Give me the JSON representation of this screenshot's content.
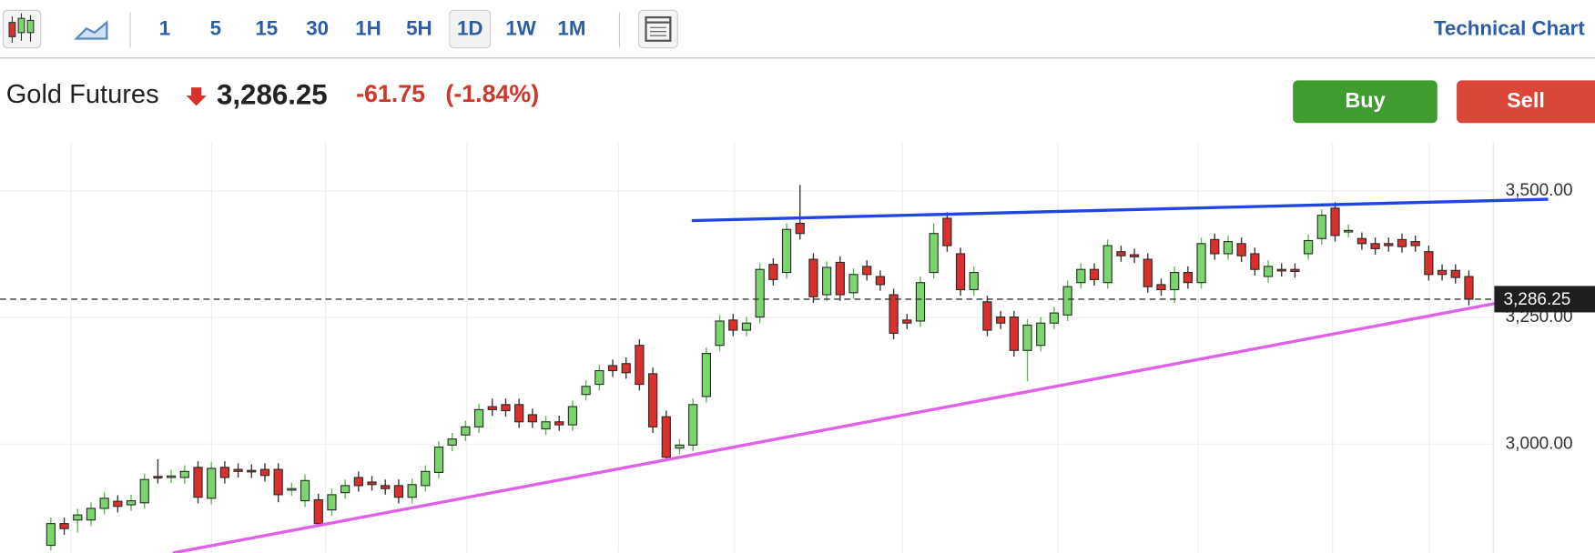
{
  "toolbar": {
    "intervals": [
      "1",
      "5",
      "15",
      "30",
      "1H",
      "5H",
      "1D",
      "1W",
      "1M"
    ],
    "selected": "1D",
    "title": "Technical Chart"
  },
  "header": {
    "instrument": "Gold Futures",
    "price": "3,286.25",
    "change": "-61.75",
    "change_percent": "(-1.84%)"
  },
  "buttons": {
    "buy": "Buy",
    "sell": "Sell"
  },
  "chart_data": {
    "type": "candlestick",
    "ylim": [
      2785,
      3596
    ],
    "yticks": [
      {
        "value": 3000,
        "label": "3,000.00"
      },
      {
        "value": 3250,
        "label": "3,250.00"
      },
      {
        "value": 3500,
        "label": "3,500.00"
      }
    ],
    "current_price": {
      "value": 3286.25,
      "label": "3,286.25"
    },
    "up_color": "#7ad66c",
    "down_color": "#d9302c",
    "grid": true,
    "open": [
      2800,
      2843,
      2850,
      2850,
      2873,
      2887,
      2880,
      2884,
      2936,
      2935,
      2934,
      2954,
      2893,
      2954,
      2950,
      2948,
      2950,
      2950,
      2910,
      2888,
      2890,
      2870,
      2904,
      2934,
      2925,
      2918,
      2918,
      2895,
      2918,
      2944,
      2998,
      3018,
      3034,
      3074,
      3078,
      3078,
      3058,
      3030,
      3044,
      3038,
      3098,
      3118,
      3155,
      3159,
      3195,
      3139,
      3054,
      2992,
      2998,
      3094,
      3195,
      3245,
      3225,
      3251,
      3355,
      3339,
      3436,
      3365,
      3295,
      3359,
      3299,
      3351,
      3331,
      3295,
      3245,
      3243,
      3339,
      3446,
      3376,
      3305,
      3281,
      3251,
      3251,
      3185,
      3195,
      3239,
      3255,
      3319,
      3345,
      3319,
      3380,
      3374,
      3365,
      3315,
      3305,
      3339,
      3319,
      3404,
      3376,
      3396,
      3376,
      3331,
      3345,
      3345,
      3376,
      3406,
      3466,
      3420,
      3406,
      3396,
      3396,
      3404,
      3400,
      3380,
      3343,
      3343,
      3331
    ],
    "high": [
      2855,
      2855,
      2872,
      2885,
      2905,
      2899,
      2900,
      2942,
      2970,
      2949,
      2958,
      2966,
      2964,
      2966,
      2962,
      2960,
      2962,
      2962,
      2924,
      2940,
      2902,
      2912,
      2930,
      2946,
      2937,
      2930,
      2930,
      2932,
      2958,
      3006,
      3022,
      3046,
      3080,
      3090,
      3090,
      3090,
      3070,
      3056,
      3056,
      3086,
      3126,
      3157,
      3167,
      3171,
      3207,
      3151,
      3066,
      3010,
      3090,
      3191,
      3255,
      3257,
      3251,
      3357,
      3367,
      3436,
      3512,
      3377,
      3361,
      3371,
      3347,
      3363,
      3343,
      3307,
      3257,
      3331,
      3436,
      3458,
      3388,
      3351,
      3293,
      3263,
      3263,
      3247,
      3251,
      3271,
      3323,
      3357,
      3357,
      3404,
      3392,
      3386,
      3377,
      3327,
      3351,
      3351,
      3408,
      3416,
      3412,
      3408,
      3388,
      3363,
      3357,
      3357,
      3414,
      3464,
      3478,
      3434,
      3418,
      3408,
      3408,
      3416,
      3412,
      3392,
      3355,
      3355,
      3343
    ],
    "low": [
      2790,
      2821,
      2825,
      2838,
      2861,
      2865,
      2868,
      2872,
      2922,
      2923,
      2922,
      2883,
      2881,
      2922,
      2934,
      2933,
      2926,
      2885,
      2898,
      2876,
      2836,
      2858,
      2892,
      2906,
      2908,
      2900,
      2883,
      2883,
      2906,
      2932,
      2986,
      3006,
      3022,
      3056,
      3054,
      3032,
      3032,
      3018,
      3026,
      3026,
      3086,
      3106,
      3133,
      3129,
      3106,
      3022,
      2966,
      2980,
      2986,
      3082,
      3183,
      3213,
      3213,
      3239,
      3313,
      3327,
      3404,
      3279,
      3283,
      3283,
      3287,
      3323,
      3303,
      3207,
      3227,
      3231,
      3327,
      3380,
      3293,
      3293,
      3213,
      3227,
      3173,
      3124,
      3183,
      3227,
      3243,
      3307,
      3313,
      3307,
      3360,
      3358,
      3299,
      3293,
      3279,
      3307,
      3307,
      3364,
      3364,
      3360,
      3333,
      3319,
      3331,
      3329,
      3364,
      3394,
      3400,
      3408,
      3384,
      3374,
      3380,
      3378,
      3380,
      3323,
      3323,
      3317,
      3274
    ],
    "close": [
      2843,
      2833,
      2860,
      2873,
      2893,
      2877,
      2888,
      2930,
      2934,
      2937,
      2946,
      2895,
      2952,
      2934,
      2946,
      2945,
      2938,
      2900,
      2912,
      2928,
      2843,
      2900,
      2918,
      2918,
      2920,
      2912,
      2895,
      2920,
      2946,
      2994,
      3010,
      3034,
      3068,
      3068,
      3066,
      3044,
      3044,
      3044,
      3038,
      3074,
      3114,
      3145,
      3145,
      3141,
      3118,
      3034,
      2974,
      2998,
      3078,
      3179,
      3243,
      3225,
      3239,
      3345,
      3325,
      3424,
      3416,
      3291,
      3349,
      3295,
      3335,
      3335,
      3315,
      3219,
      3239,
      3319,
      3416,
      3392,
      3305,
      3339,
      3225,
      3239,
      3185,
      3235,
      3239,
      3259,
      3311,
      3345,
      3325,
      3392,
      3372,
      3370,
      3311,
      3305,
      3339,
      3319,
      3396,
      3376,
      3400,
      3372,
      3345,
      3351,
      3343,
      3341,
      3402,
      3452,
      3412,
      3422,
      3396,
      3386,
      3392,
      3390,
      3392,
      3335,
      3335,
      3329,
      3286.25
    ]
  }
}
